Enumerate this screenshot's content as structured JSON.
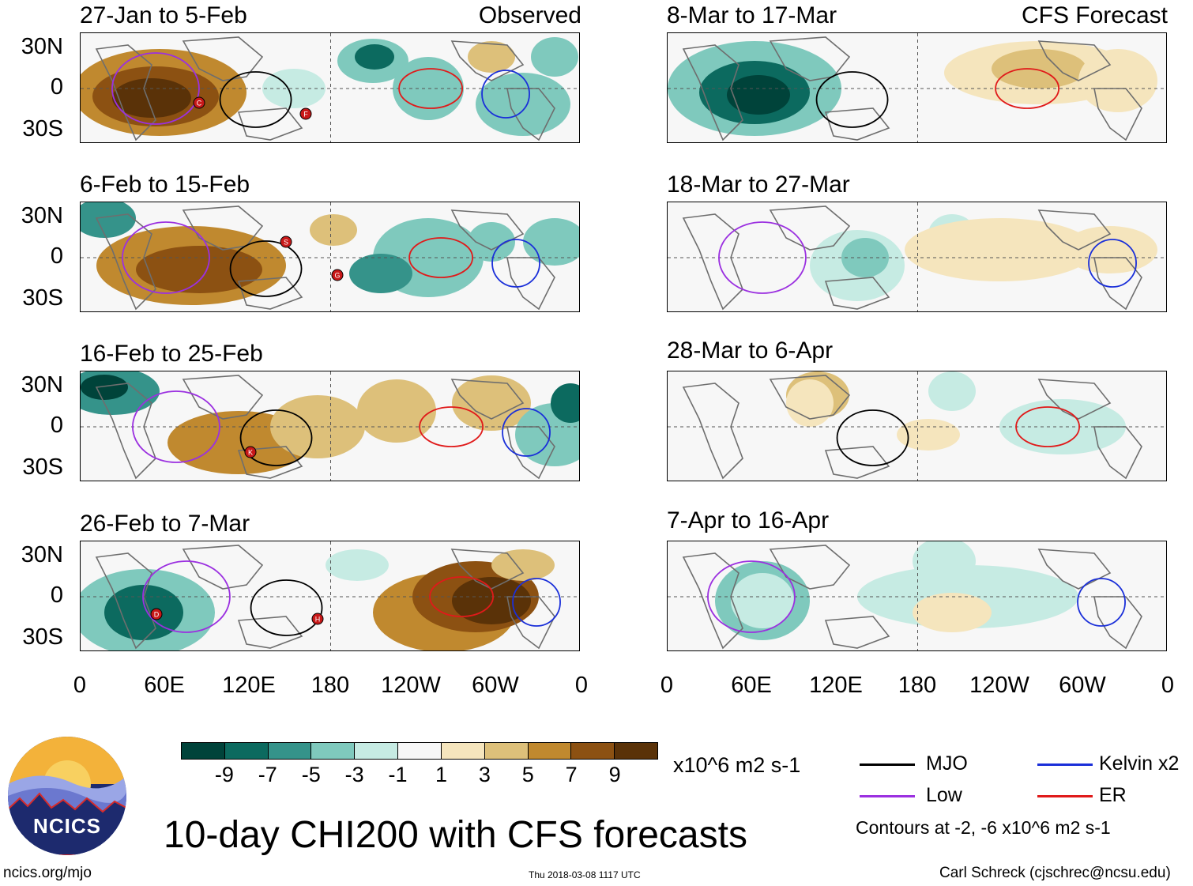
{
  "panels": [
    {
      "title": "27-Jan to 5-Feb",
      "tag": "Observed"
    },
    {
      "title": "6-Feb to 15-Feb",
      "tag": ""
    },
    {
      "title": "16-Feb to 25-Feb",
      "tag": ""
    },
    {
      "title": "26-Feb to 7-Mar",
      "tag": ""
    },
    {
      "title": "8-Mar to 17-Mar",
      "tag": "CFS Forecast"
    },
    {
      "title": "18-Mar to 27-Mar",
      "tag": ""
    },
    {
      "title": "28-Mar to 6-Apr",
      "tag": ""
    },
    {
      "title": "7-Apr to 16-Apr",
      "tag": ""
    }
  ],
  "lat_labels": [
    "30N",
    "0",
    "30S"
  ],
  "lon_labels": [
    "0",
    "60E",
    "120E",
    "180",
    "120W",
    "60W",
    "0"
  ],
  "colorbar": {
    "labels": [
      "-9",
      "-7",
      "-5",
      "-3",
      "-1",
      "1",
      "3",
      "5",
      "7",
      "9"
    ],
    "colors": [
      "#00433a",
      "#0c6a5f",
      "#35938a",
      "#7fc9bd",
      "#c6ebe3",
      "#f7f7f7",
      "#f5e5bd",
      "#ddc07a",
      "#c0892f",
      "#8c5112",
      "#5a3208"
    ],
    "units": "x10^6 m2 s-1"
  },
  "legend": {
    "items": [
      {
        "label": "MJO",
        "color": "#000000"
      },
      {
        "label": "Kelvin x2",
        "color": "#1a2fd9"
      },
      {
        "label": "Low",
        "color": "#9b30e0"
      },
      {
        "label": "ER",
        "color": "#e01a1a"
      }
    ],
    "contours_note": "Contours at -2, -6 x10^6 m2 s-1"
  },
  "title": "10-day CHI200 with CFS forecasts",
  "footer": {
    "left": "ncics.org/mjo",
    "center": "Thu 2018-03-08 1117 UTC",
    "right": "Carl Schreck (cjschrec@ncsu.edu)"
  },
  "logo_text": "NCICS",
  "storm_markers": [
    {
      "panel": 0,
      "letter": "C"
    },
    {
      "panel": 0,
      "letter": "F"
    },
    {
      "panel": 1,
      "letter": "S"
    },
    {
      "panel": 1,
      "letter": "G"
    },
    {
      "panel": 2,
      "letter": "K"
    },
    {
      "panel": 3,
      "letter": "D"
    },
    {
      "panel": 3,
      "letter": "H"
    }
  ]
}
